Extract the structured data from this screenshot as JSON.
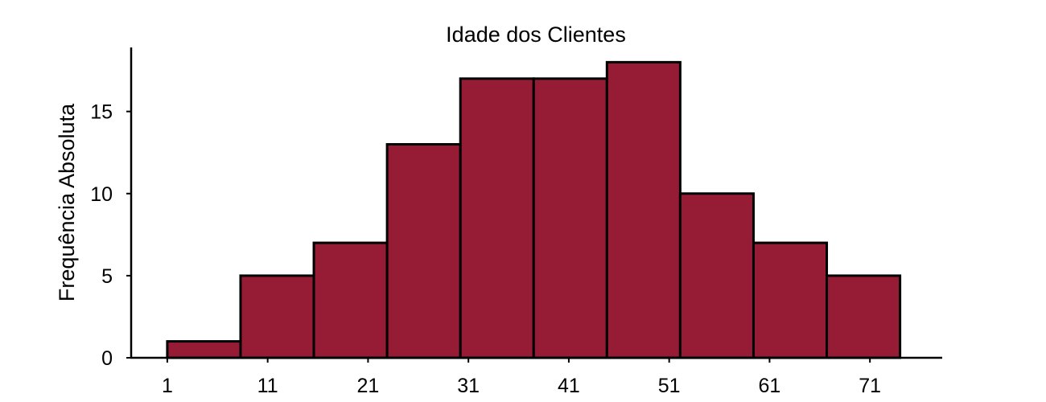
{
  "chart_data": {
    "type": "bar",
    "title": "Idade dos Clientes",
    "xlabel": "",
    "ylabel": "Frequência Absoluta",
    "bin_start": 1,
    "bin_width": 7.3,
    "values": [
      1,
      5,
      7,
      13,
      17,
      17,
      18,
      10,
      7,
      5
    ],
    "x_ticks": [
      1,
      11,
      21,
      31,
      41,
      51,
      61,
      71
    ],
    "x_tick_labels": [
      "1",
      "11",
      "21",
      "31",
      "41",
      "51",
      "61",
      "71"
    ],
    "y_ticks": [
      0,
      5,
      10,
      15
    ],
    "y_tick_labels": [
      "0",
      "5",
      "10",
      "15"
    ],
    "xlim": [
      -2.6,
      78.2
    ],
    "ylim": [
      0,
      18.9
    ],
    "grid": false,
    "colors": {
      "bar_fill": "#961C36",
      "bar_edge": "#000000",
      "axis": "#000000"
    }
  }
}
